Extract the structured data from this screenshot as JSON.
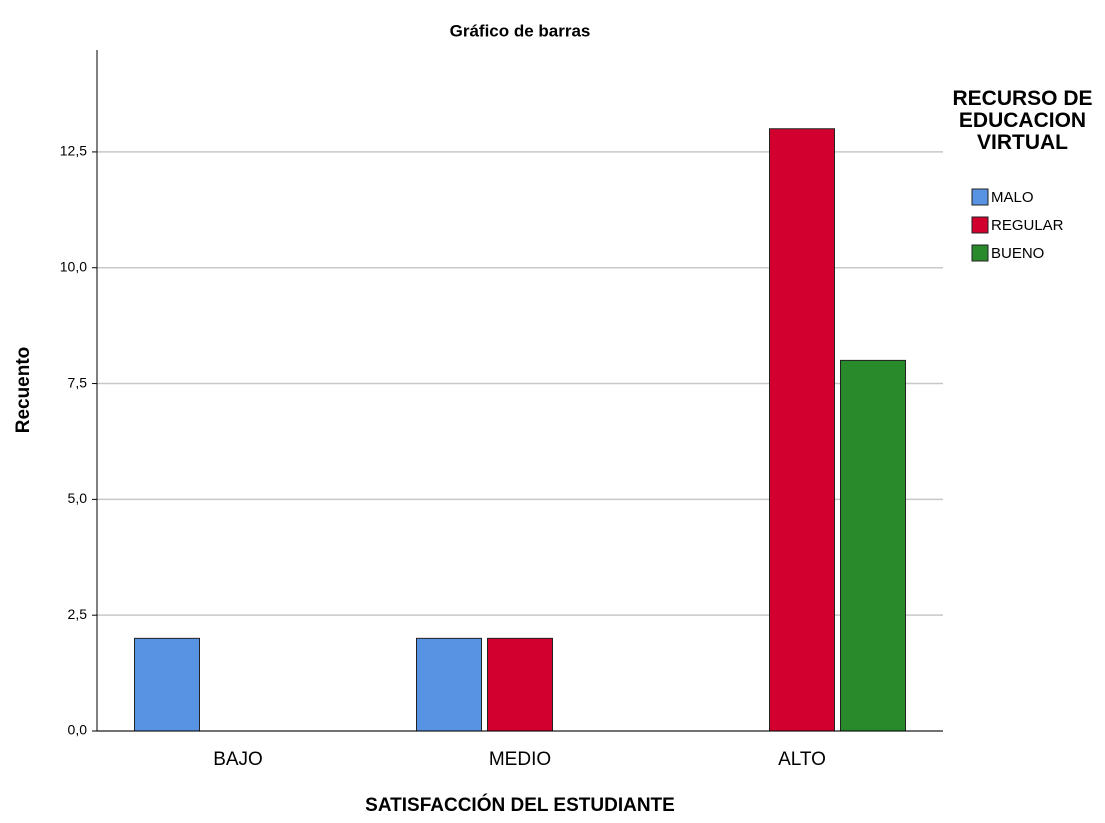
{
  "chart_data": {
    "type": "bar",
    "title": "Gráfico de barras",
    "x_label": "SATISFACCIÓN DEL ESTUDIANTE",
    "y_label": "Recuento",
    "legend_title": "RECURSO DE EDUCACION VIRTUAL",
    "legend_position": "right",
    "categories": [
      "BAJO",
      "MEDIO",
      "ALTO"
    ],
    "series": [
      {
        "name": "MALO",
        "color": "#5892e2",
        "values": [
          2,
          2,
          null
        ]
      },
      {
        "name": "REGULAR",
        "color": "#d2002f",
        "values": [
          null,
          2,
          13
        ]
      },
      {
        "name": "BUENO",
        "color": "#298a2b",
        "values": [
          null,
          null,
          8
        ]
      }
    ],
    "ylim": [
      0,
      14.7
    ],
    "yticks": [
      {
        "value": 0,
        "label": "0,0"
      },
      {
        "value": 2.5,
        "label": "2,5"
      },
      {
        "value": 5,
        "label": "5,0"
      },
      {
        "value": 7.5,
        "label": "7,5"
      },
      {
        "value": 10,
        "label": "10,0"
      },
      {
        "value": 12.5,
        "label": "12,5"
      }
    ],
    "grid": true
  }
}
